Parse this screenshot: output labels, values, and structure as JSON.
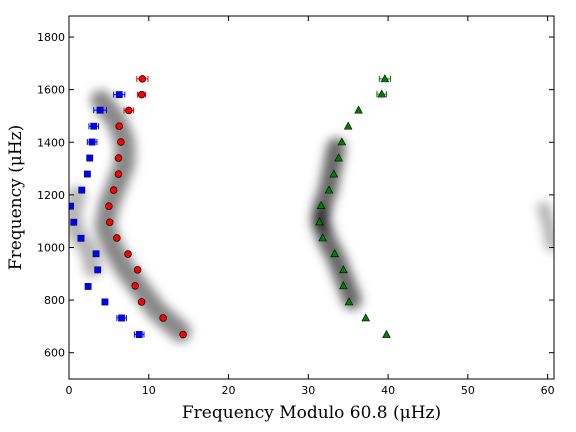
{
  "chart_data": {
    "type": "scatter",
    "title": "",
    "xlabel": "Frequency Modulo 60.8 (μHz)",
    "ylabel": "Frequency (μHz)",
    "xlim": [
      0,
      60.8
    ],
    "ylim": [
      500,
      1880
    ],
    "x_ticks": [
      0,
      10,
      20,
      30,
      40,
      50,
      60
    ],
    "y_ticks": [
      600,
      800,
      1000,
      1200,
      1400,
      1600,
      1800
    ],
    "grid": false,
    "legend": "none",
    "background": "grayscale power density (échelle diagram)",
    "series": [
      {
        "marker": "square",
        "color": "#0000ff",
        "points": [
          {
            "x": 6.3,
            "y": 1581,
            "xerr": 0.7
          },
          {
            "x": 3.9,
            "y": 1522,
            "xerr": 0.8
          },
          {
            "x": 3.1,
            "y": 1461,
            "xerr": 0.6
          },
          {
            "x": 2.9,
            "y": 1401,
            "xerr": 0.6
          },
          {
            "x": 2.6,
            "y": 1340
          },
          {
            "x": 2.3,
            "y": 1279
          },
          {
            "x": 1.6,
            "y": 1218
          },
          {
            "x": 0.2,
            "y": 1157
          },
          {
            "x": 0.6,
            "y": 1096
          },
          {
            "x": 1.5,
            "y": 1035
          },
          {
            "x": 3.4,
            "y": 976
          },
          {
            "x": 3.6,
            "y": 915
          },
          {
            "x": 2.4,
            "y": 852
          },
          {
            "x": 4.5,
            "y": 793
          },
          {
            "x": 6.6,
            "y": 732,
            "xerr": 0.6
          },
          {
            "x": 8.8,
            "y": 669,
            "xerr": 0.6
          }
        ]
      },
      {
        "marker": "circle",
        "color": "#ff0000",
        "points": [
          {
            "x": 9.2,
            "y": 1641,
            "xerr": 0.7
          },
          {
            "x": 9.1,
            "y": 1581,
            "xerr": 0.5
          },
          {
            "x": 7.5,
            "y": 1521,
            "xerr": 0.6
          },
          {
            "x": 6.3,
            "y": 1461
          },
          {
            "x": 6.5,
            "y": 1401
          },
          {
            "x": 6.2,
            "y": 1340
          },
          {
            "x": 6.2,
            "y": 1279
          },
          {
            "x": 5.6,
            "y": 1218
          },
          {
            "x": 5.0,
            "y": 1157
          },
          {
            "x": 5.1,
            "y": 1096
          },
          {
            "x": 6.0,
            "y": 1036
          },
          {
            "x": 7.4,
            "y": 975
          },
          {
            "x": 8.6,
            "y": 915
          },
          {
            "x": 8.3,
            "y": 854
          },
          {
            "x": 9.1,
            "y": 793
          },
          {
            "x": 11.8,
            "y": 732
          },
          {
            "x": 14.3,
            "y": 669
          }
        ]
      },
      {
        "marker": "triangle",
        "color": "#008000",
        "points": [
          {
            "x": 39.6,
            "y": 1641,
            "xerr": 0.7
          },
          {
            "x": 39.2,
            "y": 1583,
            "xerr": 0.6
          },
          {
            "x": 36.3,
            "y": 1522
          },
          {
            "x": 35.0,
            "y": 1461
          },
          {
            "x": 34.2,
            "y": 1401
          },
          {
            "x": 33.8,
            "y": 1340
          },
          {
            "x": 33.2,
            "y": 1279
          },
          {
            "x": 32.6,
            "y": 1218
          },
          {
            "x": 31.6,
            "y": 1159
          },
          {
            "x": 31.4,
            "y": 1097
          },
          {
            "x": 31.8,
            "y": 1036
          },
          {
            "x": 33.3,
            "y": 976
          },
          {
            "x": 34.4,
            "y": 915
          },
          {
            "x": 34.4,
            "y": 854
          },
          {
            "x": 35.1,
            "y": 793
          },
          {
            "x": 37.2,
            "y": 732
          },
          {
            "x": 39.8,
            "y": 669
          }
        ]
      }
    ],
    "density_ridges": [
      {
        "points": [
          [
            4,
            1560
          ],
          [
            6,
            1480
          ],
          [
            7,
            1400
          ],
          [
            7,
            1320
          ],
          [
            6,
            1240
          ],
          [
            5,
            1160
          ],
          [
            4.5,
            1080
          ],
          [
            5.5,
            1000
          ],
          [
            7,
            920
          ],
          [
            9,
            840
          ],
          [
            11,
            760
          ],
          [
            14,
            680
          ]
        ],
        "strength": 0.55,
        "width": 2.6
      },
      {
        "points": [
          [
            1,
            1200
          ],
          [
            0.5,
            1130
          ],
          [
            0.8,
            1060
          ],
          [
            2.5,
            990
          ],
          [
            3,
            920
          ]
        ],
        "strength": 0.35,
        "width": 2.2
      },
      {
        "points": [
          [
            33.5,
            1380
          ],
          [
            33,
            1300
          ],
          [
            32.5,
            1220
          ],
          [
            31.8,
            1160
          ],
          [
            31.5,
            1100
          ],
          [
            32.3,
            1030
          ],
          [
            33.5,
            960
          ],
          [
            34.5,
            880
          ],
          [
            35.5,
            800
          ]
        ],
        "strength": 0.7,
        "width": 2.4
      },
      {
        "points": [
          [
            31.8,
            1140
          ],
          [
            31.5,
            1100
          ],
          [
            31.9,
            1070
          ]
        ],
        "strength": 0.9,
        "width": 1.4
      },
      {
        "points": [
          [
            59.5,
            1150
          ],
          [
            60.2,
            1080
          ],
          [
            60.5,
            1010
          ]
        ],
        "strength": 0.35,
        "width": 1.6
      }
    ]
  }
}
